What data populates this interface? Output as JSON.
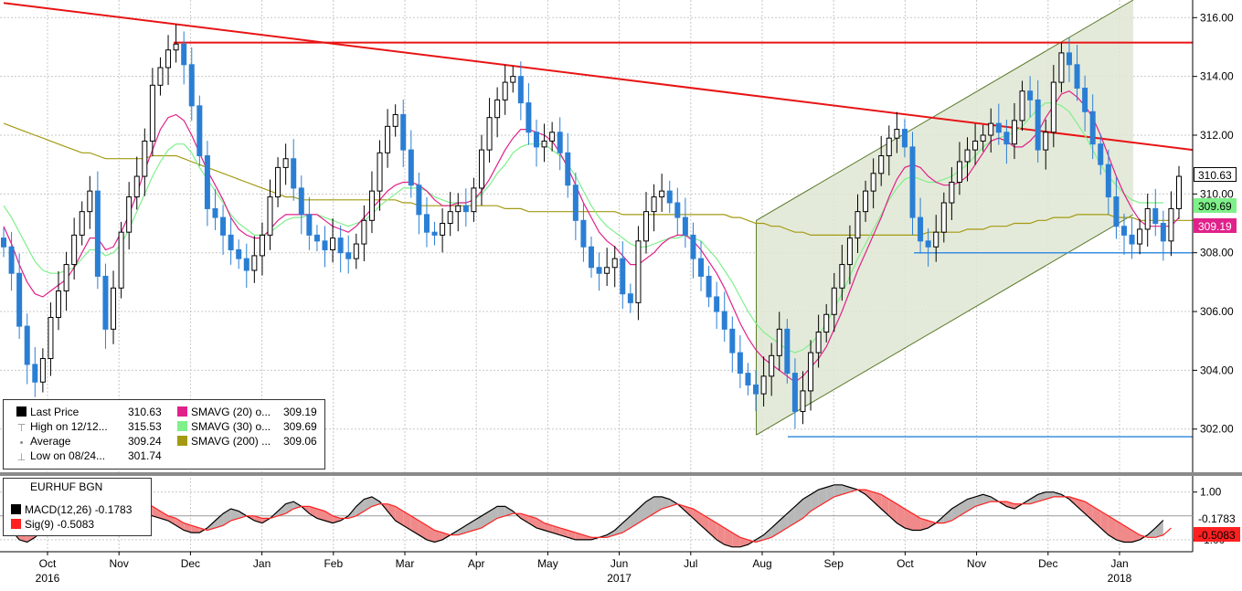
{
  "chart_data": {
    "type": "candlestick",
    "instrument": "EURHUF BGN",
    "x_ticks": [
      {
        "label": "Oct",
        "year": "2016"
      },
      {
        "label": "Nov",
        "year": ""
      },
      {
        "label": "Dec",
        "year": ""
      },
      {
        "label": "Jan",
        "year": ""
      },
      {
        "label": "Feb",
        "year": ""
      },
      {
        "label": "Mar",
        "year": ""
      },
      {
        "label": "Apr",
        "year": ""
      },
      {
        "label": "May",
        "year": ""
      },
      {
        "label": "Jun",
        "year": "2017"
      },
      {
        "label": "Jul",
        "year": ""
      },
      {
        "label": "Aug",
        "year": ""
      },
      {
        "label": "Sep",
        "year": ""
      },
      {
        "label": "Oct",
        "year": ""
      },
      {
        "label": "Nov",
        "year": ""
      },
      {
        "label": "Dec",
        "year": ""
      },
      {
        "label": "Jan",
        "year": "2018"
      }
    ],
    "y_axis": {
      "ticks": [
        "302.00",
        "304.00",
        "306.00",
        "308.00",
        "310.00",
        "312.00",
        "314.00",
        "316.00"
      ],
      "range": [
        300.5,
        316.6
      ]
    },
    "price_close": [
      308.2,
      307.3,
      305.5,
      304.2,
      303.6,
      304.4,
      305.8,
      306.7,
      307.6,
      308.6,
      309.4,
      310.1,
      307.2,
      305.4,
      306.8,
      308.7,
      309.9,
      310.6,
      311.8,
      313.7,
      314.3,
      314.9,
      315.1,
      314.4,
      313.0,
      311.3,
      309.5,
      309.2,
      308.6,
      308.1,
      307.8,
      307.4,
      307.9,
      308.6,
      309.9,
      310.9,
      311.2,
      310.2,
      309.3,
      308.6,
      308.4,
      308.1,
      308.5,
      308.0,
      307.8,
      308.3,
      309.1,
      310.1,
      311.4,
      312.3,
      312.7,
      311.5,
      310.3,
      309.3,
      308.7,
      308.6,
      309.0,
      309.4,
      309.6,
      309.4,
      310.2,
      311.5,
      312.6,
      313.2,
      313.8,
      314.0,
      313.1,
      312.1,
      311.6,
      311.8,
      312.1,
      311.4,
      310.3,
      309.1,
      308.2,
      307.5,
      307.3,
      307.5,
      307.8,
      306.6,
      306.3,
      308.4,
      309.4,
      309.9,
      310.1,
      309.7,
      309.2,
      308.6,
      307.8,
      307.2,
      306.5,
      306.0,
      305.4,
      304.6,
      303.9,
      303.5,
      303.2,
      303.8,
      304.5,
      305.4,
      303.9,
      302.6,
      303.3,
      304.6,
      305.3,
      305.9,
      306.8,
      307.6,
      308.5,
      309.4,
      310.1,
      310.7,
      311.3,
      311.9,
      312.2,
      311.6,
      309.2,
      308.4,
      308.2,
      308.7,
      309.7,
      310.4,
      311.1,
      311.5,
      311.8,
      312.0,
      312.4,
      312.1,
      311.7,
      312.5,
      313.5,
      313.2,
      311.5,
      312.1,
      313.8,
      314.8,
      314.4,
      313.6,
      312.8,
      311.7,
      311.0,
      309.9,
      308.9,
      308.6,
      308.3,
      308.8,
      309.5,
      309.0,
      308.4,
      309.5,
      310.6
    ],
    "open_high_low": "derived (high/low range shown by candle wicks)",
    "sma20": [
      308.9,
      308.3,
      307.6,
      307.0,
      306.6,
      306.5,
      306.7,
      306.9,
      307.1,
      307.5,
      308.0,
      308.5,
      308.5,
      308.1,
      308.2,
      308.7,
      309.3,
      310.0,
      310.8,
      311.5,
      312.2,
      312.6,
      312.7,
      312.5,
      312.0,
      311.4,
      310.8,
      310.3,
      309.8,
      309.2,
      308.8,
      308.6,
      308.5,
      308.5,
      308.8,
      309.1,
      309.3,
      309.3,
      309.3,
      309.3,
      309.3,
      309.1,
      308.9,
      308.8,
      308.7,
      308.9,
      309.2,
      309.5,
      309.8,
      310.1,
      310.3,
      310.4,
      310.4,
      310.3,
      310.1,
      309.8,
      309.6,
      309.6,
      309.7,
      309.7,
      309.8,
      310.1,
      310.5,
      311.0,
      311.5,
      311.9,
      312.2,
      312.2,
      312.1,
      312.0,
      311.8,
      311.4,
      310.9,
      310.3,
      309.7,
      309.2,
      308.7,
      308.4,
      308.2,
      307.9,
      307.6,
      307.6,
      307.8,
      308.0,
      308.3,
      308.5,
      308.6,
      308.6,
      308.4,
      308.1,
      307.7,
      307.3,
      306.8,
      306.2,
      305.6,
      305.1,
      304.7,
      304.4,
      304.2,
      304.0,
      303.8,
      303.6,
      303.8,
      304.1,
      304.4,
      304.8,
      305.4,
      306.0,
      306.7,
      307.4,
      308.0,
      308.6,
      309.2,
      309.9,
      310.5,
      310.9,
      311.0,
      310.9,
      310.6,
      310.4,
      310.3,
      310.3,
      310.4,
      310.6,
      311.0,
      311.4,
      311.8,
      311.9,
      311.8,
      311.6,
      311.6,
      311.8,
      312.1,
      312.6,
      313.0,
      313.4,
      313.5,
      313.3,
      313.0,
      312.6,
      312.0,
      311.3,
      310.6,
      310.0,
      309.5,
      309.1,
      308.9,
      308.9,
      308.9,
      308.9,
      309.2
    ],
    "sma30": [
      309.6,
      309.2,
      308.7,
      308.2,
      307.7,
      307.4,
      307.3,
      307.3,
      307.4,
      307.5,
      307.8,
      308.1,
      308.1,
      307.9,
      308.0,
      308.3,
      308.8,
      309.4,
      310.0,
      310.6,
      311.1,
      311.5,
      311.7,
      311.7,
      311.4,
      310.9,
      310.5,
      310.1,
      309.7,
      309.3,
      309.0,
      308.8,
      308.6,
      308.6,
      308.7,
      308.9,
      309.1,
      309.2,
      309.2,
      309.3,
      309.3,
      309.2,
      309.1,
      309.0,
      308.9,
      309.0,
      309.1,
      309.3,
      309.6,
      309.8,
      310.0,
      310.2,
      310.2,
      310.2,
      310.1,
      309.9,
      309.8,
      309.7,
      309.7,
      309.7,
      309.8,
      310.0,
      310.3,
      310.7,
      311.0,
      311.4,
      311.6,
      311.7,
      311.7,
      311.7,
      311.5,
      311.3,
      311.0,
      310.6,
      310.1,
      309.6,
      309.2,
      308.9,
      308.7,
      308.5,
      308.3,
      308.2,
      308.2,
      308.3,
      308.4,
      308.5,
      308.5,
      308.6,
      308.5,
      308.4,
      308.1,
      307.8,
      307.4,
      307.0,
      306.5,
      306.0,
      305.6,
      305.3,
      305.1,
      304.9,
      304.7,
      304.6,
      304.7,
      304.9,
      305.2,
      305.6,
      306.1,
      306.6,
      307.2,
      307.8,
      308.3,
      308.8,
      309.3,
      309.8,
      310.2,
      310.5,
      310.6,
      310.5,
      310.4,
      310.4,
      310.5,
      310.6,
      310.8,
      311.0,
      311.3,
      311.6,
      311.8,
      311.9,
      312.0,
      312.1,
      312.3,
      312.6,
      312.9,
      313.1,
      313.1,
      313.0,
      312.8,
      312.4,
      312.0,
      311.5,
      311.0,
      310.6,
      310.3,
      310.0,
      309.8,
      309.7,
      309.7,
      309.7,
      309.7
    ],
    "sma200": [
      312.4,
      312.3,
      312.2,
      312.1,
      312.0,
      311.9,
      311.8,
      311.7,
      311.6,
      311.5,
      311.4,
      311.4,
      311.3,
      311.2,
      311.2,
      311.2,
      311.2,
      311.2,
      311.2,
      311.3,
      311.3,
      311.3,
      311.3,
      311.2,
      311.1,
      311.0,
      310.9,
      310.8,
      310.7,
      310.6,
      310.5,
      310.4,
      310.3,
      310.2,
      310.1,
      310.0,
      309.9,
      309.9,
      309.8,
      309.8,
      309.8,
      309.8,
      309.8,
      309.8,
      309.8,
      309.8,
      309.8,
      309.8,
      309.8,
      309.8,
      309.8,
      309.7,
      309.7,
      309.6,
      309.6,
      309.6,
      309.6,
      309.6,
      309.6,
      309.6,
      309.6,
      309.6,
      309.6,
      309.6,
      309.5,
      309.5,
      309.5,
      309.4,
      309.4,
      309.4,
      309.4,
      309.4,
      309.4,
      309.4,
      309.4,
      309.4,
      309.4,
      309.4,
      309.4,
      309.3,
      309.3,
      309.3,
      309.3,
      309.3,
      309.3,
      309.3,
      309.3,
      309.3,
      309.3,
      309.3,
      309.3,
      309.3,
      309.3,
      309.2,
      309.2,
      309.1,
      309.0,
      309.0,
      308.9,
      308.9,
      308.8,
      308.7,
      308.7,
      308.6,
      308.6,
      308.6,
      308.6,
      308.6,
      308.6,
      308.6,
      308.6,
      308.6,
      308.6,
      308.6,
      308.6,
      308.6,
      308.6,
      308.6,
      308.7,
      308.7,
      308.7,
      308.7,
      308.7,
      308.8,
      308.8,
      308.8,
      308.9,
      308.9,
      308.9,
      309.0,
      309.0,
      309.0,
      309.1,
      309.1,
      309.2,
      309.2,
      309.2,
      309.3,
      309.3,
      309.3,
      309.3,
      309.3,
      309.2,
      309.2,
      309.2,
      309.1,
      309.1,
      309.1,
      309.1,
      309.1,
      309.1,
      309.1,
      309.1
    ],
    "annotations": {
      "resistance_high": 315.15,
      "support_low": 301.74,
      "support_mid": 308.0,
      "downtrend_line": [
        {
          "t": 0.0,
          "y": 316.5
        },
        {
          "t": 1.0,
          "y": 311.5
        }
      ],
      "channel": {
        "upper": [
          {
            "t": 0.633,
            "y": 309.1
          },
          {
            "t": 0.95,
            "y": 316.6
          }
        ],
        "lower": [
          {
            "t": 0.633,
            "y": 301.8
          },
          {
            "t": 0.95,
            "y": 309.3
          }
        ]
      }
    },
    "legend": [
      {
        "color": "#000000",
        "label": "Last Price",
        "value": "310.63",
        "marker": "box"
      },
      {
        "color": "#888888",
        "label": "High on 12/12...",
        "value": "315.53",
        "marker": "high"
      },
      {
        "color": "#888888",
        "label": "Average",
        "value": "309.24",
        "marker": "avg"
      },
      {
        "color": "#888888",
        "label": "Low on 08/24...",
        "value": "301.74",
        "marker": "low"
      },
      {
        "color": "#e0218a",
        "label": "SMAVG (20) o...",
        "value": "309.19",
        "marker": "box"
      },
      {
        "color": "#7ff08a",
        "label": "SMAVG (30) o...",
        "value": "309.69",
        "marker": "box"
      },
      {
        "color": "#a39a12",
        "label": "SMAVG (200) ...",
        "value": "309.06",
        "marker": "box"
      }
    ],
    "last_value_tags": [
      {
        "value": "310.63",
        "bg": "#ffffff",
        "fg": "#000000",
        "border": "#000000"
      },
      {
        "value": "309.69",
        "bg": "#7ff08a",
        "fg": "#000000",
        "border": "#7ff08a"
      },
      {
        "value": "309.19",
        "bg": "#e0218a",
        "fg": "#ffffff",
        "border": "#e0218a"
      }
    ],
    "macd": {
      "title": "EURHUF BGN",
      "legend": [
        {
          "color": "#000000",
          "label": "MACD(12,26)",
          "value": "-0.1783"
        },
        {
          "color": "#ff2020",
          "label": "Sig(9)",
          "value": "-0.5083"
        }
      ],
      "y_ticks": [
        "1.00",
        "-1.00"
      ],
      "y_range": [
        -1.5,
        1.6
      ],
      "macd": [
        0.2,
        -0.6,
        -1.0,
        -1.1,
        -0.9,
        -0.6,
        -0.3,
        0.0,
        0.2,
        0.6,
        0.9,
        1.2,
        1.3,
        1.4,
        1.2,
        0.8,
        0.4,
        0.2,
        0.1,
        0.0,
        -0.1,
        -0.2,
        -0.4,
        -0.6,
        -0.7,
        -0.7,
        -0.5,
        -0.2,
        0.1,
        0.3,
        0.2,
        0.0,
        -0.2,
        -0.3,
        -0.1,
        0.2,
        0.5,
        0.6,
        0.4,
        0.1,
        -0.1,
        -0.2,
        -0.3,
        -0.2,
        0.0,
        0.4,
        0.7,
        0.8,
        0.6,
        0.2,
        -0.2,
        -0.4,
        -0.6,
        -0.8,
        -1.0,
        -1.1,
        -1.0,
        -0.8,
        -0.6,
        -0.4,
        -0.2,
        0.0,
        0.2,
        0.4,
        0.4,
        0.2,
        -0.1,
        -0.3,
        -0.5,
        -0.6,
        -0.7,
        -0.8,
        -0.9,
        -1.0,
        -1.0,
        -1.0,
        -0.9,
        -0.8,
        -0.6,
        -0.3,
        0.0,
        0.3,
        0.6,
        0.8,
        0.8,
        0.7,
        0.5,
        0.2,
        -0.1,
        -0.4,
        -0.7,
        -1.0,
        -1.2,
        -1.3,
        -1.3,
        -1.2,
        -1.0,
        -0.8,
        -0.5,
        -0.2,
        0.1,
        0.4,
        0.7,
        0.9,
        1.1,
        1.2,
        1.3,
        1.3,
        1.2,
        1.1,
        0.9,
        0.6,
        0.3,
        0.0,
        -0.3,
        -0.5,
        -0.6,
        -0.6,
        -0.5,
        -0.3,
        0.0,
        0.3,
        0.5,
        0.7,
        0.8,
        0.9,
        0.8,
        0.6,
        0.4,
        0.3,
        0.5,
        0.7,
        0.9,
        1.0,
        1.0,
        0.9,
        0.7,
        0.4,
        0.1,
        -0.2,
        -0.5,
        -0.8,
        -1.0,
        -1.1,
        -1.1,
        -1.0,
        -0.8,
        -0.5,
        -0.18
      ],
      "signal": [
        0.5,
        0.1,
        -0.3,
        -0.6,
        -0.8,
        -0.8,
        -0.7,
        -0.5,
        -0.3,
        -0.1,
        0.2,
        0.5,
        0.8,
        1.0,
        1.1,
        1.1,
        1.0,
        0.8,
        0.6,
        0.4,
        0.2,
        0.0,
        -0.1,
        -0.3,
        -0.4,
        -0.5,
        -0.6,
        -0.5,
        -0.4,
        -0.2,
        -0.1,
        0.0,
        0.0,
        -0.1,
        -0.1,
        0.0,
        0.1,
        0.3,
        0.4,
        0.4,
        0.3,
        0.2,
        0.0,
        -0.1,
        -0.1,
        0.0,
        0.2,
        0.4,
        0.5,
        0.5,
        0.4,
        0.2,
        0.0,
        -0.2,
        -0.4,
        -0.6,
        -0.7,
        -0.8,
        -0.8,
        -0.7,
        -0.6,
        -0.5,
        -0.3,
        -0.1,
        0.0,
        0.1,
        0.1,
        0.0,
        -0.1,
        -0.3,
        -0.4,
        -0.5,
        -0.6,
        -0.7,
        -0.8,
        -0.9,
        -0.9,
        -0.9,
        -0.8,
        -0.7,
        -0.5,
        -0.3,
        -0.1,
        0.1,
        0.3,
        0.4,
        0.5,
        0.4,
        0.3,
        0.1,
        -0.1,
        -0.3,
        -0.5,
        -0.7,
        -0.9,
        -1.0,
        -1.1,
        -1.0,
        -0.9,
        -0.7,
        -0.5,
        -0.3,
        -0.1,
        0.2,
        0.4,
        0.6,
        0.8,
        0.9,
        1.0,
        1.1,
        1.1,
        1.0,
        0.9,
        0.7,
        0.5,
        0.3,
        0.1,
        -0.1,
        -0.2,
        -0.3,
        -0.3,
        -0.2,
        0.0,
        0.2,
        0.4,
        0.5,
        0.6,
        0.6,
        0.6,
        0.5,
        0.5,
        0.5,
        0.6,
        0.7,
        0.8,
        0.8,
        0.8,
        0.7,
        0.6,
        0.4,
        0.2,
        0.0,
        -0.2,
        -0.4,
        -0.6,
        -0.8,
        -0.9,
        -0.9,
        -0.8,
        -0.51
      ]
    },
    "macd_last_tags": [
      {
        "value": "-0.1783",
        "bg": "#ffffff",
        "fg": "#000000"
      },
      {
        "value": "-0.5083",
        "bg": "#ff2020",
        "fg": "#000000"
      }
    ],
    "colors": {
      "up_candle": "#000000",
      "down_candle": "#2a7fd4",
      "sma20": "#e0218a",
      "sma30": "#7ff08a",
      "sma200": "#a39a12",
      "trend_red": "#e81414",
      "support_blue": "#3a8fe0",
      "channel_fill": "#dfe6d4",
      "channel_line": "#5a7a2a",
      "grid": "#c8c8c8"
    }
  }
}
